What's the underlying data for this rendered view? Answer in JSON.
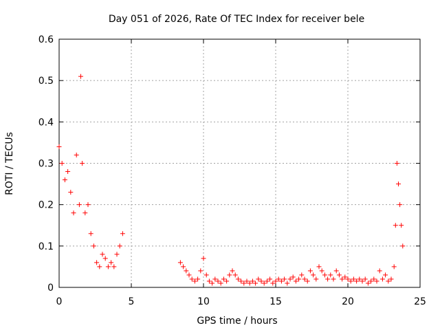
{
  "chart_data": {
    "type": "scatter",
    "title": "Day 051 of 2026, Rate Of TEC Index for receiver bele",
    "xlabel": "GPS time / hours",
    "ylabel": "ROTI / TECUs",
    "xlim": [
      0,
      25
    ],
    "ylim": [
      0,
      0.6
    ],
    "xticks": [
      "0",
      "5",
      "10",
      "15",
      "20",
      "25"
    ],
    "yticks": [
      "0",
      "0.1",
      "0.2",
      "0.3",
      "0.4",
      "0.5",
      "0.6"
    ],
    "grid": true,
    "marker": "+",
    "color": "#ff0000",
    "segments": [
      {
        "x": [
          0.0,
          0.2,
          0.4,
          0.6,
          0.8,
          1.0,
          1.2,
          1.4,
          1.5,
          1.6,
          1.8,
          2.0,
          2.2,
          2.4,
          2.6,
          2.8,
          3.0,
          3.2,
          3.4,
          3.6,
          3.8,
          4.0,
          4.2,
          4.4
        ],
        "y": [
          0.34,
          0.3,
          0.26,
          0.28,
          0.23,
          0.18,
          0.32,
          0.2,
          0.51,
          0.3,
          0.18,
          0.2,
          0.13,
          0.1,
          0.06,
          0.05,
          0.08,
          0.07,
          0.05,
          0.06,
          0.05,
          0.08,
          0.1,
          0.13
        ]
      },
      {
        "x": [
          8.4,
          8.6,
          8.8,
          9.0,
          9.2,
          9.4,
          9.6,
          9.8,
          10.0,
          10.2,
          10.4,
          10.6,
          10.8,
          11.0,
          11.2,
          11.4,
          11.6,
          11.8,
          12.0,
          12.2,
          12.4,
          12.6,
          12.8,
          13.0,
          13.2,
          13.4,
          13.6,
          13.8,
          14.0,
          14.2,
          14.4,
          14.6,
          14.8,
          15.0,
          15.2,
          15.4,
          15.6,
          15.8,
          16.0,
          16.2,
          16.4,
          16.6,
          16.8,
          17.0,
          17.2,
          17.4,
          17.6,
          17.8,
          18.0,
          18.2,
          18.4,
          18.6,
          18.8,
          19.0,
          19.2,
          19.4,
          19.6,
          19.8,
          20.0,
          20.2,
          20.4,
          20.6,
          20.8,
          21.0,
          21.2,
          21.4,
          21.6,
          21.8,
          22.0,
          22.2,
          22.4,
          22.6,
          22.8,
          23.0,
          23.2,
          23.3,
          23.4,
          23.5,
          23.6,
          23.7,
          23.8
        ],
        "y": [
          0.06,
          0.05,
          0.04,
          0.03,
          0.02,
          0.015,
          0.02,
          0.04,
          0.07,
          0.03,
          0.015,
          0.01,
          0.02,
          0.015,
          0.01,
          0.02,
          0.015,
          0.03,
          0.04,
          0.03,
          0.02,
          0.015,
          0.01,
          0.015,
          0.01,
          0.015,
          0.01,
          0.02,
          0.015,
          0.01,
          0.015,
          0.02,
          0.01,
          0.015,
          0.02,
          0.015,
          0.02,
          0.01,
          0.02,
          0.025,
          0.015,
          0.02,
          0.03,
          0.02,
          0.015,
          0.04,
          0.03,
          0.02,
          0.05,
          0.04,
          0.03,
          0.02,
          0.03,
          0.02,
          0.04,
          0.03,
          0.02,
          0.025,
          0.02,
          0.015,
          0.02,
          0.015,
          0.02,
          0.015,
          0.02,
          0.01,
          0.015,
          0.02,
          0.015,
          0.04,
          0.02,
          0.03,
          0.015,
          0.02,
          0.05,
          0.15,
          0.3,
          0.25,
          0.2,
          0.15,
          0.1
        ]
      }
    ]
  }
}
